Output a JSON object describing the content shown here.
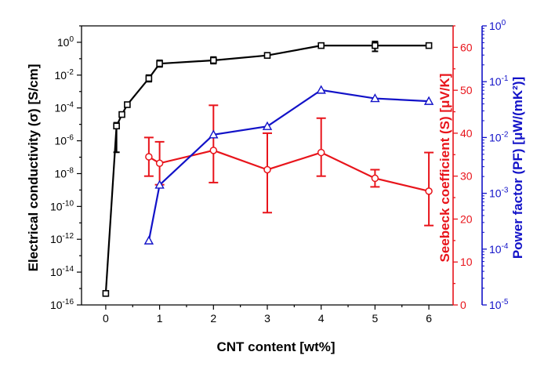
{
  "chart_data": {
    "type": "line",
    "title": "",
    "xlabel": "CNT content [wt%]",
    "xlim": [
      -0.45,
      6.45
    ],
    "xticks": [
      0,
      1,
      2,
      3,
      4,
      5,
      6
    ],
    "axes": {
      "left": {
        "label": "Electrical conductivity (σ) [S/cm]",
        "scale": "log",
        "log_min": -16,
        "log_max": 1,
        "ticks": [
          {
            "exp": 0,
            "label": "10^0"
          },
          {
            "exp": -2,
            "label": "10^-2"
          },
          {
            "exp": -4,
            "label": "10^-4"
          },
          {
            "exp": -6,
            "label": "10^-6"
          },
          {
            "exp": -8,
            "label": "10^-8"
          },
          {
            "exp": -10,
            "label": "10^-10"
          },
          {
            "exp": -12,
            "label": "10^-12"
          },
          {
            "exp": -14,
            "label": "10^-14"
          },
          {
            "exp": -16,
            "label": "10^-16"
          }
        ],
        "color": "#000000"
      },
      "right1": {
        "label": "Seebeck coefficient (S) [μV/K]",
        "scale": "linear",
        "min": 0,
        "max": 65,
        "ticks": [
          0,
          10,
          20,
          30,
          40,
          50,
          60
        ],
        "color": "#e8141b"
      },
      "right2": {
        "label": "Power factor (PF) [μW/(mK²)]",
        "scale": "log",
        "log_min": -5,
        "log_max": 0,
        "ticks": [
          {
            "exp": 0,
            "label": "10^0"
          },
          {
            "exp": -1,
            "label": "10^-1"
          },
          {
            "exp": -2,
            "label": "10^-2"
          },
          {
            "exp": -3,
            "label": "10^-3"
          },
          {
            "exp": -4,
            "label": "10^-4"
          },
          {
            "exp": -5,
            "label": "10^-5"
          }
        ],
        "color": "#1212c8"
      }
    },
    "series": [
      {
        "name": "Electrical conductivity",
        "axis": "left",
        "color": "#000000",
        "marker": "square",
        "x": [
          0,
          0.2,
          0.3,
          0.4,
          0.8,
          1,
          2,
          3,
          4,
          5,
          6
        ],
        "y_exp": [
          -15.3,
          -5.1,
          -4.4,
          -3.8,
          -2.2,
          -1.3,
          -1.1,
          -0.8,
          -0.2,
          -0.2,
          -0.2
        ],
        "yerr_exp": [
          [
            -15.3,
            -15.3
          ],
          [
            -6.7,
            -4.9
          ],
          [
            -4.5,
            -4.3
          ],
          [
            -3.9,
            -3.7
          ],
          [
            -2.4,
            -2.0
          ],
          [
            -1.5,
            -1.1
          ],
          [
            -1.3,
            -0.9
          ],
          [
            -0.9,
            -0.7
          ],
          [
            -0.3,
            -0.1
          ],
          [
            -0.55,
            0.05
          ],
          [
            -0.3,
            -0.1
          ]
        ]
      },
      {
        "name": "Seebeck coefficient",
        "axis": "right1",
        "color": "#e8141b",
        "marker": "circle",
        "x": [
          0.8,
          1,
          2,
          3,
          4,
          5,
          6
        ],
        "y": [
          34.5,
          33.0,
          36.0,
          31.5,
          35.5,
          29.5,
          26.5
        ],
        "yerr": [
          [
            30.0,
            39.0
          ],
          [
            28.0,
            38.0
          ],
          [
            28.5,
            46.5
          ],
          [
            21.5,
            40.0
          ],
          [
            30.0,
            43.5
          ],
          [
            27.5,
            31.5
          ],
          [
            18.5,
            35.5
          ]
        ]
      },
      {
        "name": "Power factor",
        "axis": "right2",
        "color": "#1212c8",
        "marker": "triangle",
        "x": [
          0.8,
          1,
          2,
          3,
          4,
          5,
          6
        ],
        "y_exp": [
          -3.85,
          -2.85,
          -1.95,
          -1.8,
          -1.15,
          -1.3,
          -1.35
        ]
      }
    ]
  }
}
